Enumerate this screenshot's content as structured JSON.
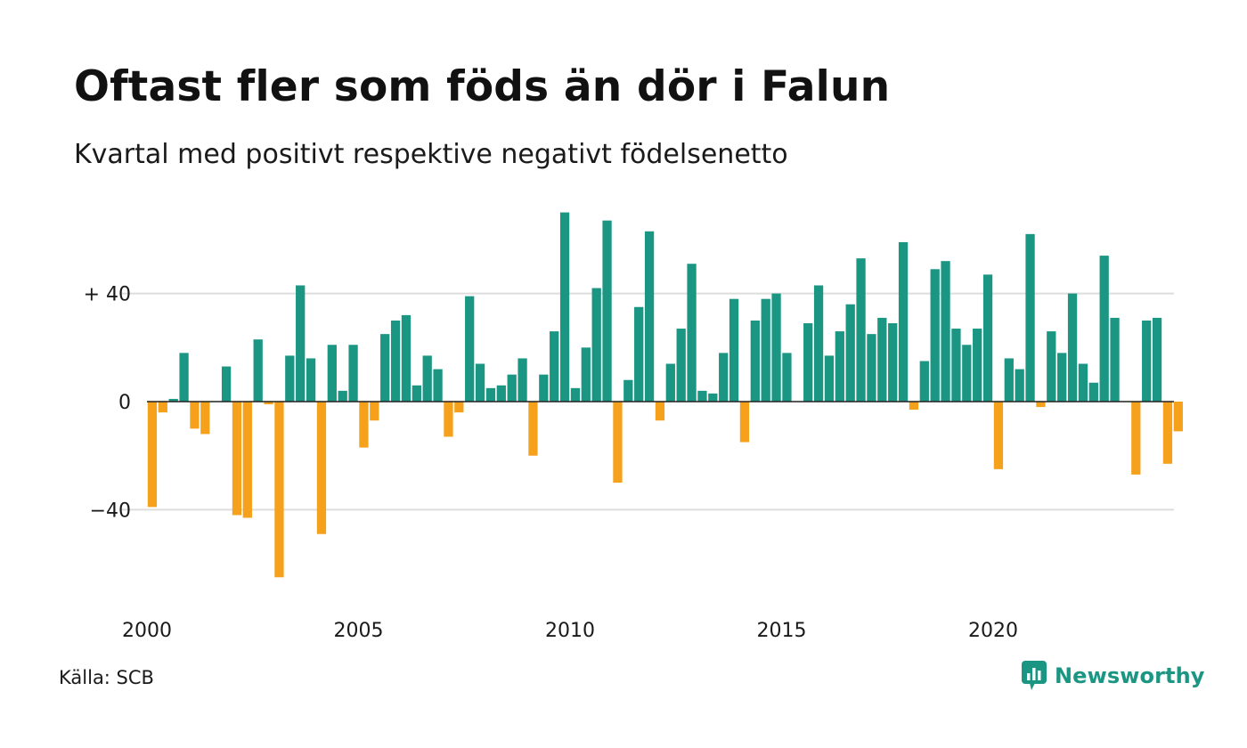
{
  "title": "Oftast fler som föds än dör i Falun",
  "subtitle": "Kvartal med positivt respektive negativt födelsenetto",
  "source": "Källa: SCB",
  "brand": {
    "name": "Newsworthy",
    "icon": "newsworthy-logo-icon"
  },
  "colors": {
    "positive": "#1a9683",
    "negative": "#f5a11c",
    "grid": "#dddddd",
    "zero_line": "#222222"
  },
  "chart_data": {
    "type": "bar",
    "title": "Oftast fler som föds än dör i Falun",
    "subtitle": "Kvartal med positivt respektive negativt födelsenetto",
    "xlabel": "",
    "ylabel": "",
    "ylim": [
      -70,
      75
    ],
    "grid": true,
    "y_ticks": [
      {
        "value": 40,
        "label": "+ 40"
      },
      {
        "value": 0,
        "label": "0"
      },
      {
        "value": -40,
        "label": "−40"
      }
    ],
    "x_ticks": [
      {
        "value": 2000,
        "label": "2000"
      },
      {
        "value": 2005,
        "label": "2005"
      },
      {
        "value": 2010,
        "label": "2010"
      },
      {
        "value": 2015,
        "label": "2015"
      },
      {
        "value": 2020,
        "label": "2020"
      }
    ],
    "start_year": 2000,
    "periods_per_year": 4,
    "values": [
      -39,
      -4,
      1,
      18,
      -10,
      -12,
      0,
      13,
      -42,
      -43,
      23,
      -1,
      -65,
      17,
      43,
      16,
      -49,
      21,
      4,
      21,
      -17,
      -7,
      25,
      30,
      32,
      6,
      17,
      12,
      -13,
      -4,
      39,
      14,
      5,
      6,
      10,
      16,
      -20,
      10,
      26,
      70,
      5,
      20,
      42,
      67,
      -30,
      8,
      35,
      63,
      -7,
      14,
      27,
      51,
      4,
      3,
      18,
      38,
      -15,
      30,
      38,
      40,
      18,
      0,
      29,
      43,
      17,
      26,
      36,
      53,
      25,
      31,
      29,
      59,
      -3,
      15,
      49,
      52,
      27,
      21,
      27,
      47,
      -25,
      16,
      12,
      62,
      -2,
      26,
      18,
      40,
      14,
      7,
      54,
      31,
      0,
      -27,
      30,
      31,
      -23,
      -11
    ]
  }
}
